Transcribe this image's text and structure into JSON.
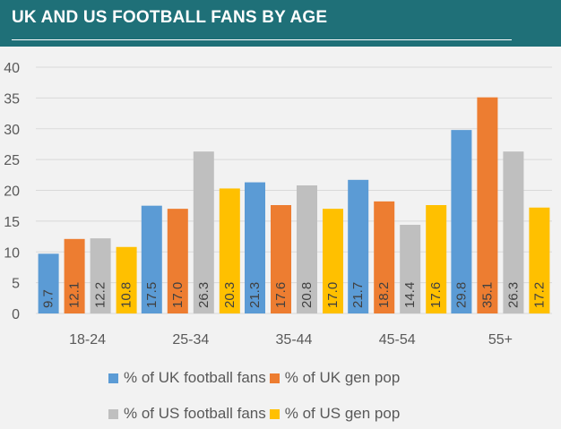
{
  "header": {
    "title": "UK AND US FOOTBALL FANS BY AGE"
  },
  "chart_data": {
    "type": "bar",
    "title": "UK AND US FOOTBALL FANS BY AGE",
    "xlabel": "",
    "ylabel": "",
    "ylim": [
      0,
      40
    ],
    "yticks": [
      "0",
      "5",
      "10",
      "15",
      "20",
      "25",
      "30",
      "35",
      "40"
    ],
    "grid": true,
    "legend_position": "bottom",
    "categories": [
      "18-24",
      "25-34",
      "35-44",
      "45-54",
      "55+"
    ],
    "series": [
      {
        "name": "% of UK football fans",
        "color": "#5b9bd5",
        "values": [
          9.7,
          17.5,
          21.3,
          21.7,
          29.8
        ],
        "labels": [
          "9.7",
          "17.5",
          "21.3",
          "21.7",
          "29.8"
        ]
      },
      {
        "name": "% of UK gen pop",
        "color": "#ed7d31",
        "values": [
          12.1,
          17.0,
          17.6,
          18.2,
          35.1
        ],
        "labels": [
          "12.1",
          "17.0",
          "17.6",
          "18.2",
          "35.1"
        ]
      },
      {
        "name": "% of US football fans",
        "color": "#bfbfbf",
        "values": [
          12.2,
          26.3,
          20.8,
          14.4,
          26.3
        ],
        "labels": [
          "12.2",
          "26.3",
          "20.8",
          "14.4",
          "26.3"
        ]
      },
      {
        "name": "% of US gen pop",
        "color": "#ffc000",
        "values": [
          10.8,
          20.3,
          17.0,
          17.6,
          17.2
        ],
        "labels": [
          "10.8",
          "20.3",
          "17.0",
          "17.6",
          "17.2"
        ]
      }
    ]
  },
  "legend": {
    "row1": [
      "% of UK football fans",
      "% of UK gen pop"
    ],
    "row2": [
      "% of US football fans",
      "% of US gen pop"
    ]
  },
  "colors": {
    "header_bg": "#1f7078",
    "page_bg": "#f2f2f2",
    "grid": "#d9d9d9",
    "text": "#595959"
  }
}
